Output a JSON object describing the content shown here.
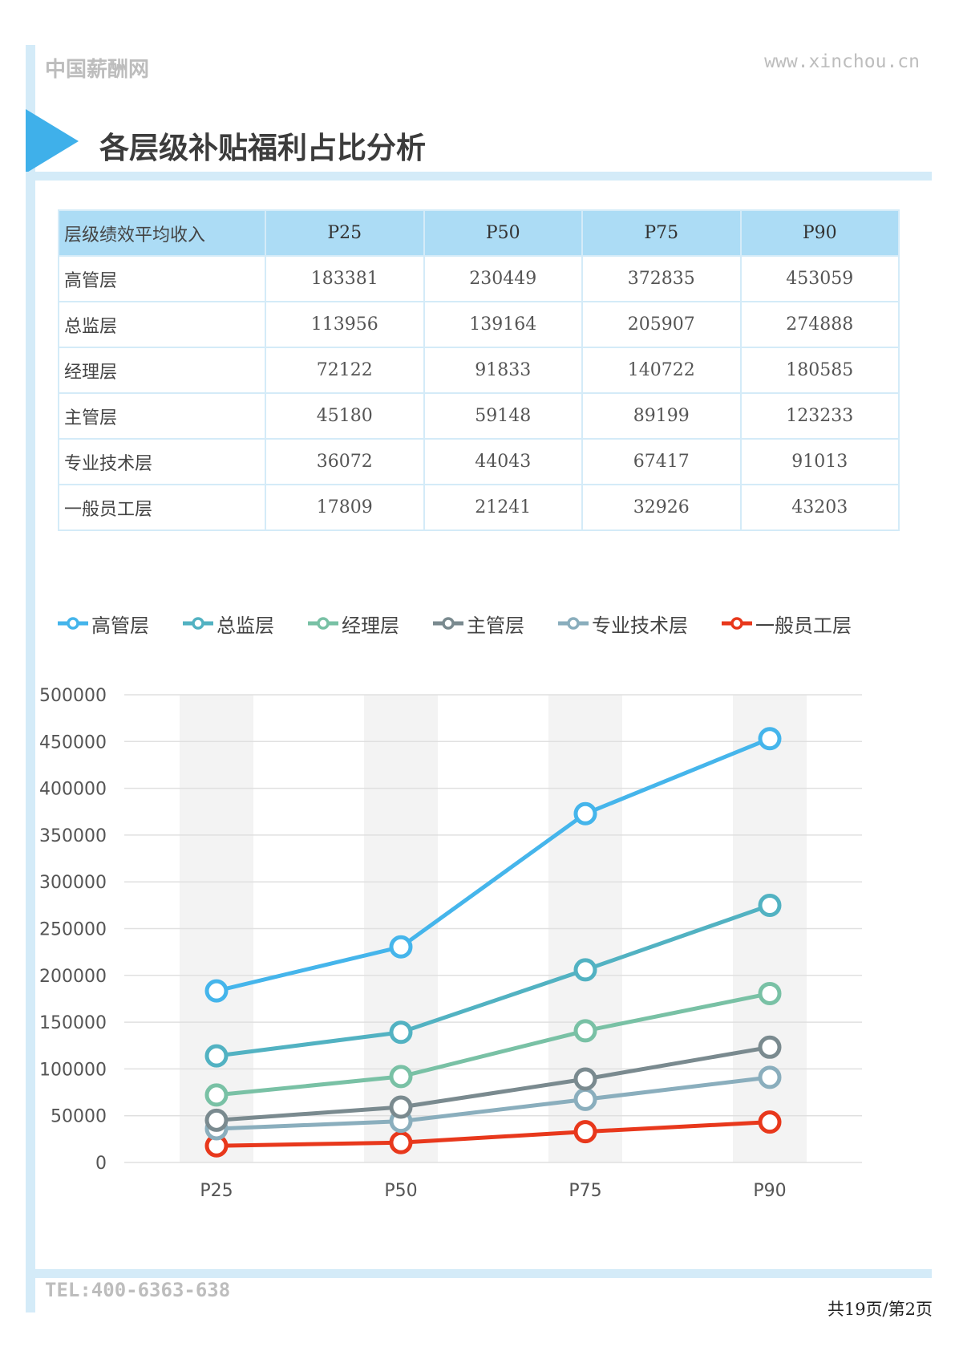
{
  "header": {
    "brand": "中国薪酬网",
    "site": "www.xinchou.cn",
    "title": "各层级补贴福利占比分析"
  },
  "table": {
    "columns": [
      "层级绩效平均收入",
      "P25",
      "P50",
      "P75",
      "P90"
    ],
    "rows": [
      [
        "高管层",
        "183381",
        "230449",
        "372835",
        "453059"
      ],
      [
        "总监层",
        "113956",
        "139164",
        "205907",
        "274888"
      ],
      [
        "经理层",
        "72122",
        "91833",
        "140722",
        "180585"
      ],
      [
        "主管层",
        "45180",
        "59148",
        "89199",
        "123233"
      ],
      [
        "专业技术层",
        "36072",
        "44043",
        "67417",
        "91013"
      ],
      [
        "一般员工层",
        "17809",
        "21241",
        "32926",
        "43203"
      ]
    ]
  },
  "chart_data": {
    "type": "line",
    "title": "",
    "xlabel": "",
    "ylabel": "",
    "categories": [
      "P25",
      "P50",
      "P75",
      "P90"
    ],
    "ylim": [
      0,
      500000
    ],
    "yticks": [
      0,
      50000,
      100000,
      150000,
      200000,
      250000,
      300000,
      350000,
      400000,
      450000,
      500000
    ],
    "legend_position": "top",
    "grid": true,
    "series": [
      {
        "name": "高管层",
        "color": "#45b5eb",
        "values": [
          183381,
          230449,
          372835,
          453059
        ]
      },
      {
        "name": "总监层",
        "color": "#52b2c2",
        "values": [
          113956,
          139164,
          205907,
          274888
        ]
      },
      {
        "name": "经理层",
        "color": "#79c1a5",
        "values": [
          72122,
          91833,
          140722,
          180585
        ]
      },
      {
        "name": "主管层",
        "color": "#7a8a8f",
        "values": [
          45180,
          59148,
          89199,
          123233
        ]
      },
      {
        "name": "专业技术层",
        "color": "#8aaebd",
        "values": [
          36072,
          44043,
          67417,
          91013
        ]
      },
      {
        "name": "一般员工层",
        "color": "#e8381c",
        "values": [
          17809,
          21241,
          32926,
          43203
        ]
      }
    ]
  },
  "footer": {
    "tel": "TEL:400-6363-638",
    "pager": "共19页/第2页"
  }
}
